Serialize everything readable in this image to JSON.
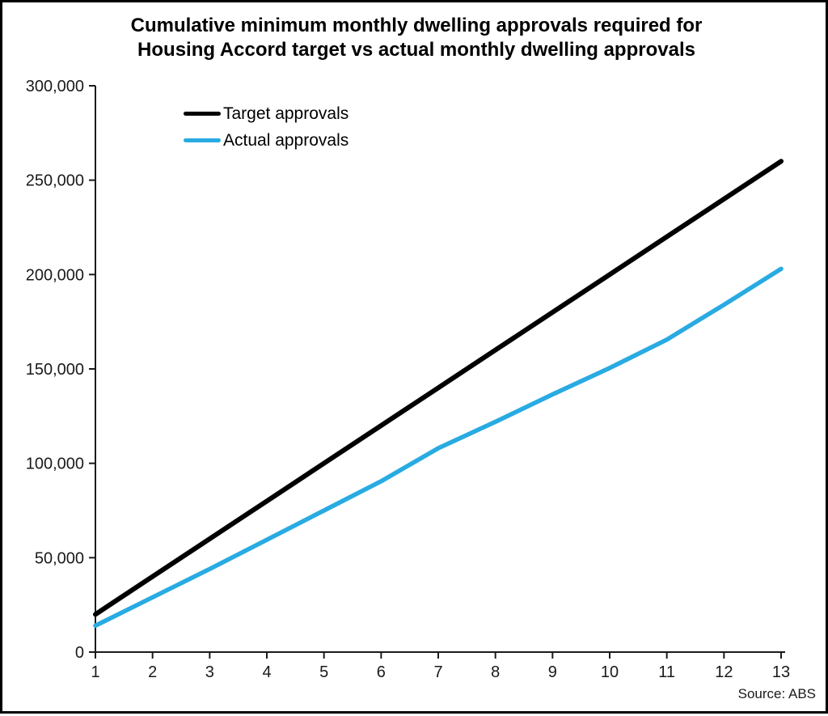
{
  "title": {
    "line1": "Cumulative minimum monthly dwelling approvals required for",
    "line2": "Housing Accord target vs actual monthly dwelling approvals"
  },
  "source": "Source: ABS",
  "colors": {
    "target_line": "#000000",
    "actual_line": "#29ABE2",
    "axis": "#1a1a1a",
    "text": "#000000",
    "background": "#ffffff"
  },
  "chart_data": {
    "type": "line",
    "title": "Cumulative minimum monthly dwelling approvals required for Housing Accord target vs actual monthly dwelling approvals",
    "xlabel": "",
    "ylabel": "",
    "x": [
      1,
      2,
      3,
      4,
      5,
      6,
      7,
      8,
      9,
      10,
      11,
      12,
      13
    ],
    "series": [
      {
        "name": "Target approvals",
        "color": "#000000",
        "values": [
          20000,
          40000,
          60000,
          80000,
          100000,
          120000,
          140000,
          160000,
          180000,
          200000,
          220000,
          240000,
          260000
        ]
      },
      {
        "name": "Actual approvals",
        "color": "#29ABE2",
        "values": [
          14000,
          29000,
          44000,
          59500,
          75000,
          90500,
          108000,
          122000,
          136500,
          150500,
          165500,
          184000,
          203000
        ]
      }
    ],
    "ylim": [
      0,
      300000
    ],
    "ytick_step": 50000,
    "xlim": [
      1,
      13
    ],
    "grid": false,
    "legend_position": "top-left-inside",
    "source": "Source: ABS"
  }
}
